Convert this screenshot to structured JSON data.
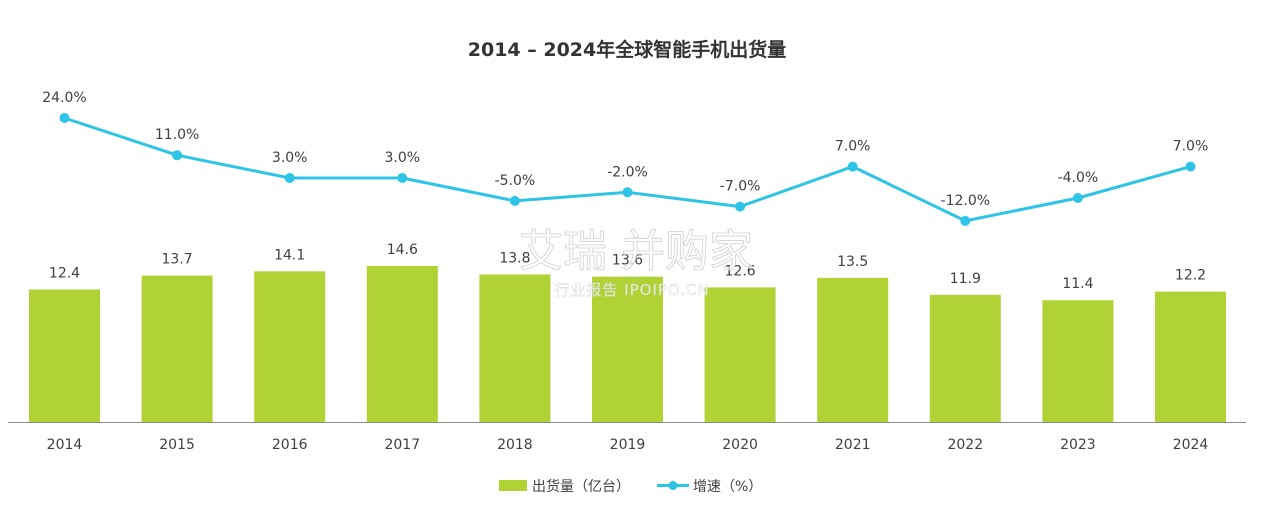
{
  "chart_data": {
    "type": "bar+line",
    "title": "2014 – 2024年全球智能手机出货量",
    "categories": [
      "2014",
      "2015",
      "2016",
      "2017",
      "2018",
      "2019",
      "2020",
      "2021",
      "2022",
      "2023",
      "2024"
    ],
    "series": [
      {
        "name": "出货量（亿台）",
        "type": "bar",
        "values": [
          12.4,
          13.7,
          14.1,
          14.6,
          13.8,
          13.6,
          12.6,
          13.5,
          11.9,
          11.4,
          12.2
        ],
        "labels": [
          "12.4",
          "13.7",
          "14.1",
          "14.6",
          "13.8",
          "13.6",
          "12.6",
          "13.5",
          "11.9",
          "11.4",
          "12.2"
        ]
      },
      {
        "name": "增速（%）",
        "type": "line",
        "values": [
          24.0,
          11.0,
          3.0,
          3.0,
          -5.0,
          -2.0,
          -7.0,
          7.0,
          -12.0,
          -4.0,
          7.0
        ],
        "labels": [
          "24.0%",
          "11.0%",
          "3.0%",
          "3.0%",
          "-5.0%",
          "-2.0%",
          "-7.0%",
          "7.0%",
          "-12.0%",
          "-4.0%",
          "7.0%"
        ]
      }
    ],
    "bar_ylim": [
      0,
      28.5
    ],
    "line_ylim": [
      -35,
      43
    ],
    "legend_position": "bottom-center",
    "grid": false,
    "colors": {
      "bar": "#b0d235",
      "line": "#2ec4e6",
      "axis": "#8c8c8c",
      "text": "#404040"
    }
  },
  "watermark": {
    "line1": "艾瑞 并购家",
    "line2": "行业报告 IPOIPO.CN"
  }
}
